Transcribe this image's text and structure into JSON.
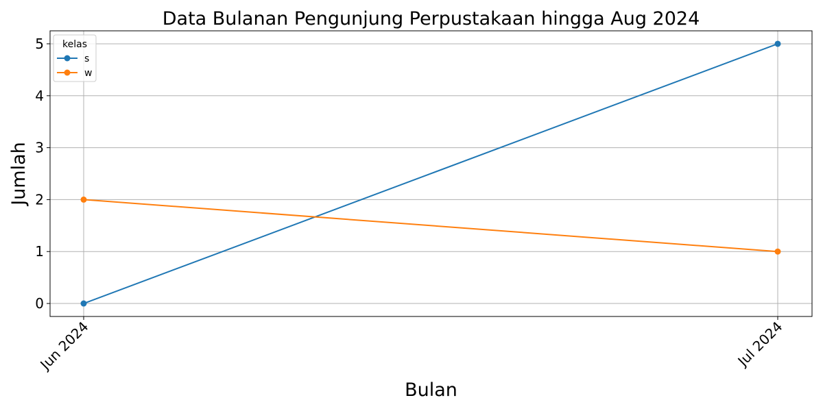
{
  "chart_data": {
    "type": "line",
    "title": "Data Bulanan Pengunjung Perpustakaan hingga Aug 2024",
    "xlabel": "Bulan",
    "ylabel": "Jumlah",
    "categories": [
      "Jun 2024",
      "Jul 2024"
    ],
    "yticks": [
      0,
      1,
      2,
      3,
      4,
      5
    ],
    "ylim": [
      -0.25,
      5.25
    ],
    "grid": true,
    "legend": {
      "title": "kelas",
      "placement": "top-left"
    },
    "series": [
      {
        "name": "s",
        "values": [
          0,
          5
        ],
        "color": "#1f77b4"
      },
      {
        "name": "w",
        "values": [
          2,
          1
        ],
        "color": "#ff7f0e"
      }
    ]
  }
}
